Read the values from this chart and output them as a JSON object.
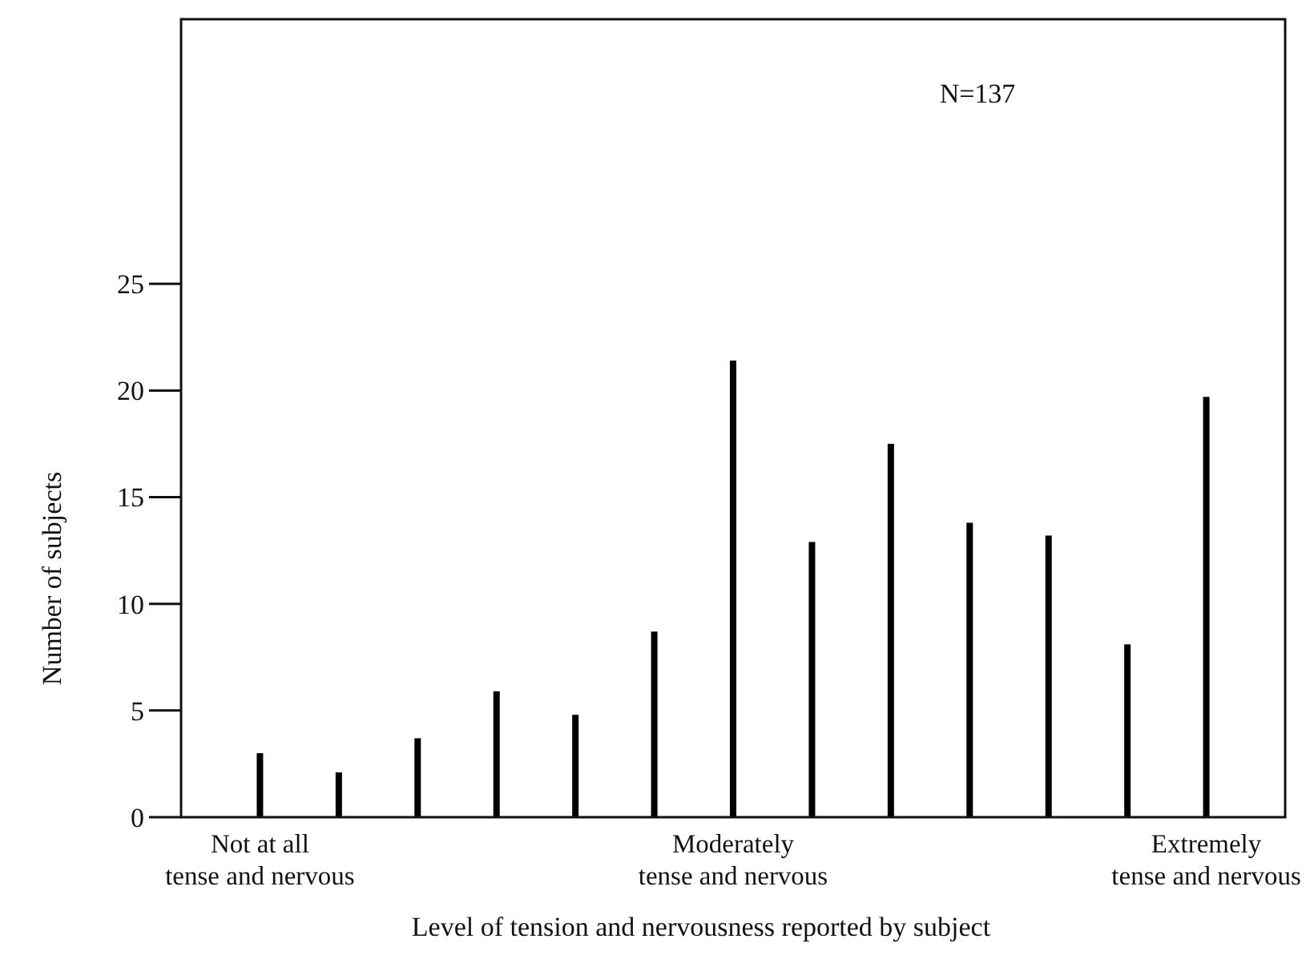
{
  "chart_data": {
    "type": "bar",
    "xlabel": "Level of tension and nervousness reported by subject",
    "ylabel": "Number of subjects",
    "categories": [
      "Not at all\ntense and nervous",
      null,
      null,
      null,
      null,
      null,
      "Moderately\ntense and nervous",
      null,
      null,
      null,
      null,
      null,
      "Extremely\ntense and nervous"
    ],
    "values": [
      3,
      2.1,
      3.7,
      5.9,
      4.8,
      8.7,
      21.4,
      12.9,
      17.5,
      13.8,
      13.2,
      8.1,
      19.7
    ],
    "color": "#000000",
    "ylim": [
      0,
      37.4
    ],
    "yticks": [
      0,
      5,
      10,
      15,
      20,
      25
    ],
    "annotations": [
      "N=137"
    ]
  }
}
